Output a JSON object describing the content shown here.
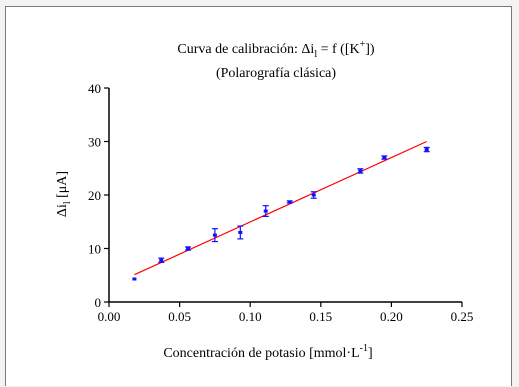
{
  "chart_data": {
    "type": "scatter",
    "title_line1_prefix": "Curva de calibración: Δi",
    "title_line1_sub": "l",
    "title_line1_mid": " = f ([K",
    "title_line1_sup": "+",
    "title_line1_suffix": "])",
    "subtitle": "(Polarografía clásica)",
    "xlabel_prefix": "Concentración de potasio [mmol·L",
    "xlabel_sup": "-1",
    "xlabel_suffix": "]",
    "ylabel_prefix": "Δi",
    "ylabel_sub": "l",
    "ylabel_suffix": " [μA]",
    "xlim": [
      0.0,
      0.25
    ],
    "ylim": [
      0,
      40
    ],
    "x_ticks": [
      0.0,
      0.05,
      0.1,
      0.15,
      0.2,
      0.25
    ],
    "x_tick_labels": [
      "0.00",
      "0.05",
      "0.10",
      "0.15",
      "0.20",
      "0.25"
    ],
    "y_ticks": [
      0,
      10,
      20,
      30,
      40
    ],
    "y_tick_labels": [
      "0",
      "10",
      "20",
      "30",
      "40"
    ],
    "grid": false,
    "series": [
      {
        "x": [
          0.018,
          0.037,
          0.056,
          0.075,
          0.093,
          0.111,
          0.128,
          0.145,
          0.178,
          0.195,
          0.225
        ],
        "y": [
          4.3,
          7.8,
          10.0,
          12.5,
          13.0,
          17.0,
          18.7,
          20.0,
          24.5,
          27.0,
          28.5
        ],
        "err": [
          0,
          0.4,
          0.3,
          1.2,
          1.2,
          1.0,
          0.2,
          0.6,
          0.4,
          0.3,
          0.4
        ],
        "marker_color": "#1010ff"
      }
    ],
    "fit_line": {
      "x": [
        0.018,
        0.225
      ],
      "y": [
        5.1,
        30.0
      ],
      "color": "#ff0000"
    }
  }
}
